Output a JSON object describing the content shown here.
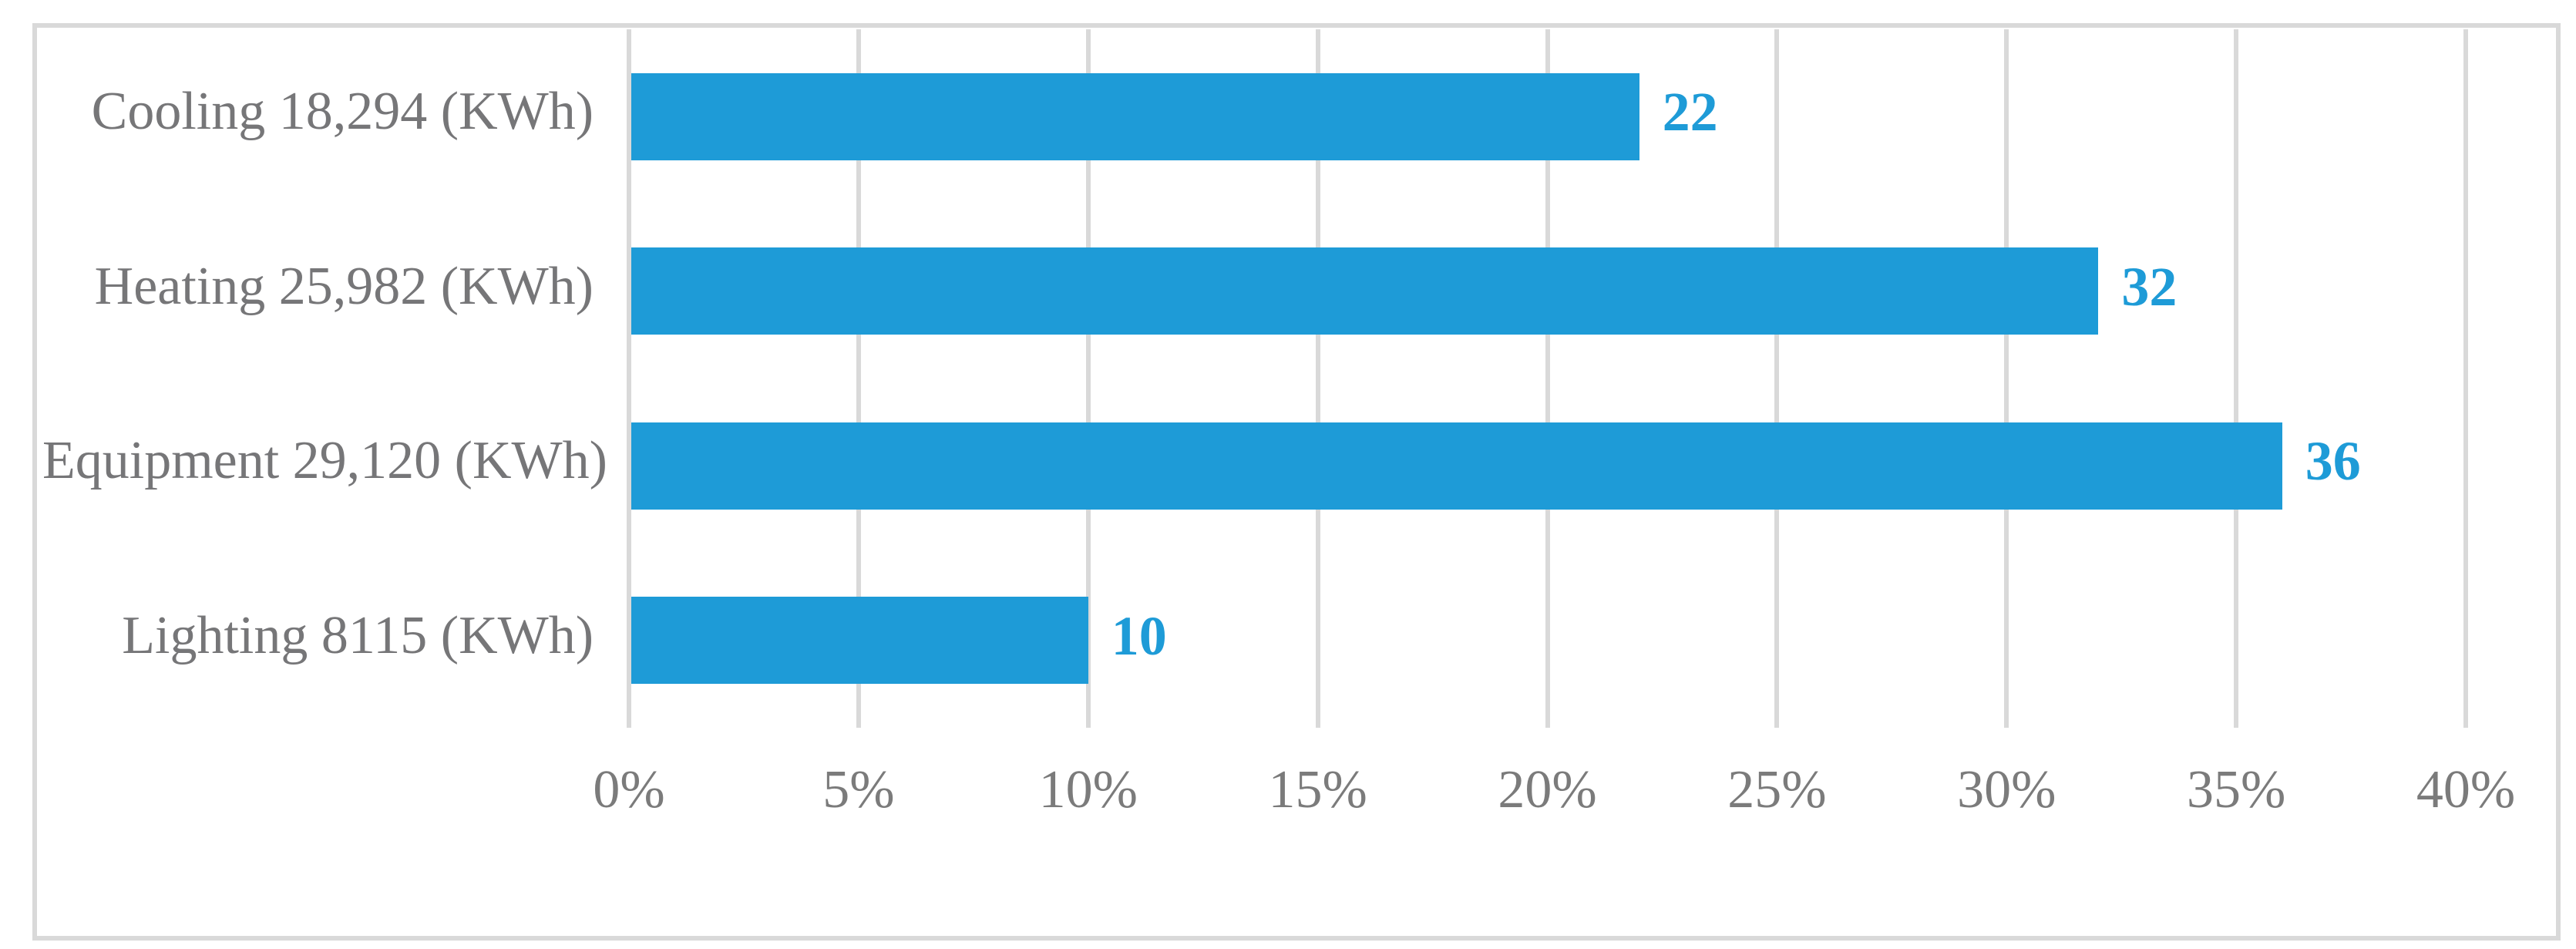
{
  "figure": {
    "background_color": "#ffffff",
    "frame_border_color": "#d9d9d9",
    "title": "",
    "legend": "none"
  },
  "chart_data": {
    "type": "bar",
    "orientation": "horizontal",
    "title": "",
    "xlabel": "",
    "ylabel": "",
    "categories": [
      "Cooling 18,294 (KWh)",
      "Heating 25,982 (KWh)",
      "Equipment 29,120 (KWh)",
      "Lighting 8115 (KWh)"
    ],
    "category_energy_kwh": [
      18294,
      25982,
      29120,
      8115
    ],
    "values": [
      22,
      32,
      36,
      10
    ],
    "value_labels": [
      "22",
      "32",
      "36",
      "10"
    ],
    "value_unit": "percent",
    "xlim": [
      0,
      40
    ],
    "x_tick_values": [
      0,
      5,
      10,
      15,
      20,
      25,
      30,
      35,
      40
    ],
    "x_tick_labels": [
      "0%",
      "5%",
      "10%",
      "15%",
      "20%",
      "25%",
      "30%",
      "35%",
      "40%"
    ],
    "grid": "vertical",
    "legend_position": "none",
    "bar_color": "#1e9bd7",
    "value_label_color": "#1e9bd7",
    "category_label_color": "#767678",
    "tick_label_color": "#7b7b7b",
    "gridline_color": "#d9d9d9"
  }
}
